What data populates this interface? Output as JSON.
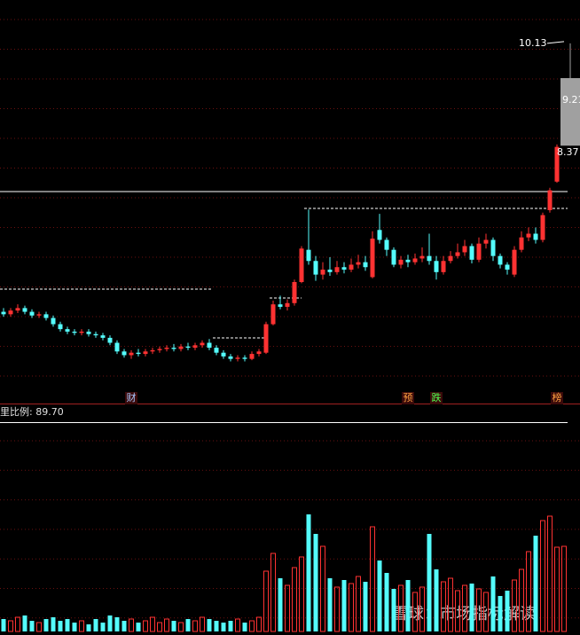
{
  "chart_data": {
    "type": "candlestick",
    "open": [
      5.8,
      5.76,
      5.82,
      5.86,
      5.8,
      5.74,
      5.76,
      5.7,
      5.6,
      5.52,
      5.48,
      5.46,
      5.48,
      5.44,
      5.42,
      5.38,
      5.3,
      5.16,
      5.1,
      5.14,
      5.12,
      5.16,
      5.18,
      5.2,
      5.22,
      5.2,
      5.24,
      5.22,
      5.26,
      5.3,
      5.22,
      5.14,
      5.08,
      5.04,
      5.06,
      5.04,
      5.12,
      5.14,
      5.6,
      5.92,
      5.88,
      5.94,
      6.28,
      6.8,
      6.62,
      6.4,
      6.48,
      6.44,
      6.52,
      6.48,
      6.56,
      6.6,
      6.36,
      7.12,
      6.96,
      6.8,
      6.56,
      6.64,
      6.6,
      6.66,
      6.7,
      6.62,
      6.44,
      6.62,
      6.7,
      6.76,
      6.86,
      6.64,
      6.9,
      6.96,
      6.7,
      6.56,
      6.4,
      6.8,
      7.0,
      7.06,
      6.96,
      7.44,
      7.9,
      8.48
    ],
    "high": [
      5.86,
      5.86,
      5.92,
      5.9,
      5.84,
      5.8,
      5.8,
      5.74,
      5.64,
      5.56,
      5.52,
      5.52,
      5.52,
      5.48,
      5.46,
      5.42,
      5.34,
      5.2,
      5.18,
      5.2,
      5.2,
      5.22,
      5.24,
      5.26,
      5.28,
      5.28,
      5.3,
      5.3,
      5.34,
      5.36,
      5.26,
      5.18,
      5.12,
      5.1,
      5.1,
      5.16,
      5.2,
      5.64,
      5.98,
      6.06,
      6.0,
      6.32,
      6.86,
      7.45,
      6.7,
      6.6,
      6.68,
      6.62,
      6.6,
      6.66,
      6.72,
      6.7,
      7.1,
      7.38,
      7.0,
      6.84,
      6.7,
      6.72,
      6.74,
      6.84,
      7.06,
      6.7,
      6.7,
      6.78,
      6.9,
      6.96,
      6.9,
      7.0,
      7.06,
      7.0,
      6.74,
      6.6,
      6.86,
      7.1,
      7.16,
      7.16,
      7.4,
      7.8,
      8.5,
      10.13
    ],
    "low": [
      5.72,
      5.72,
      5.78,
      5.76,
      5.7,
      5.7,
      5.66,
      5.56,
      5.48,
      5.44,
      5.42,
      5.42,
      5.4,
      5.38,
      5.34,
      5.26,
      5.12,
      5.06,
      5.04,
      5.08,
      5.08,
      5.12,
      5.14,
      5.16,
      5.16,
      5.16,
      5.18,
      5.18,
      5.22,
      5.18,
      5.1,
      5.04,
      5.0,
      5.0,
      5.0,
      5.02,
      5.08,
      5.12,
      5.58,
      5.84,
      5.82,
      5.9,
      6.26,
      6.56,
      6.3,
      6.32,
      6.38,
      6.4,
      6.42,
      6.44,
      6.5,
      6.46,
      6.34,
      6.9,
      6.7,
      6.52,
      6.5,
      6.52,
      6.56,
      6.6,
      6.56,
      6.32,
      6.4,
      6.58,
      6.66,
      6.7,
      6.58,
      6.6,
      6.82,
      6.62,
      6.5,
      6.4,
      6.36,
      6.76,
      6.94,
      6.9,
      6.92,
      7.4,
      7.88,
      8.48
    ],
    "close": [
      5.76,
      5.82,
      5.86,
      5.8,
      5.74,
      5.76,
      5.7,
      5.6,
      5.52,
      5.48,
      5.46,
      5.48,
      5.44,
      5.42,
      5.38,
      5.3,
      5.16,
      5.1,
      5.14,
      5.12,
      5.16,
      5.18,
      5.2,
      5.22,
      5.2,
      5.24,
      5.22,
      5.26,
      5.3,
      5.22,
      5.14,
      5.08,
      5.04,
      5.06,
      5.04,
      5.12,
      5.16,
      5.6,
      5.92,
      5.88,
      5.94,
      6.28,
      6.82,
      6.62,
      6.4,
      6.48,
      6.44,
      6.52,
      6.48,
      6.56,
      6.6,
      6.52,
      6.98,
      6.96,
      6.8,
      6.56,
      6.64,
      6.6,
      6.66,
      6.7,
      6.62,
      6.44,
      6.62,
      6.7,
      6.76,
      6.86,
      6.64,
      6.9,
      6.96,
      6.7,
      6.56,
      6.48,
      6.8,
      7.0,
      7.06,
      6.96,
      7.36,
      7.76,
      8.46,
      9.57
    ],
    "volume": [
      14,
      12,
      16,
      18,
      12,
      10,
      14,
      16,
      12,
      14,
      10,
      12,
      8,
      14,
      10,
      18,
      16,
      12,
      14,
      10,
      12,
      16,
      10,
      14,
      12,
      10,
      14,
      12,
      16,
      14,
      12,
      10,
      12,
      14,
      10,
      12,
      16,
      68,
      88,
      60,
      52,
      72,
      84,
      132,
      110,
      96,
      60,
      50,
      58,
      54,
      62,
      56,
      118,
      80,
      66,
      48,
      52,
      58,
      44,
      50,
      110,
      70,
      56,
      60,
      46,
      52,
      54,
      48,
      44,
      62,
      40,
      46,
      58,
      70,
      90,
      108,
      125,
      130,
      95,
      96
    ],
    "ylim": [
      4.32,
      10.83
    ],
    "volume_ylim": [
      0,
      140
    ],
    "up_color": "#ff3232",
    "down_color": "#54fcfc",
    "last_color": "#a0a0a0",
    "price_labels": [
      10.13,
      9.21,
      8.37
    ],
    "events": [
      {
        "label": "财",
        "index": 18,
        "color": "#a8c8ff"
      },
      {
        "label": "预",
        "index": 57,
        "color": "#ffa040"
      },
      {
        "label": "跌",
        "index": 61,
        "color": "#50ff50"
      },
      {
        "label": "榜",
        "index": 78,
        "color": "#ffa040"
      }
    ],
    "indicator_label": "里比例: 89.70",
    "watermark": "雪球：市场指标解读"
  }
}
